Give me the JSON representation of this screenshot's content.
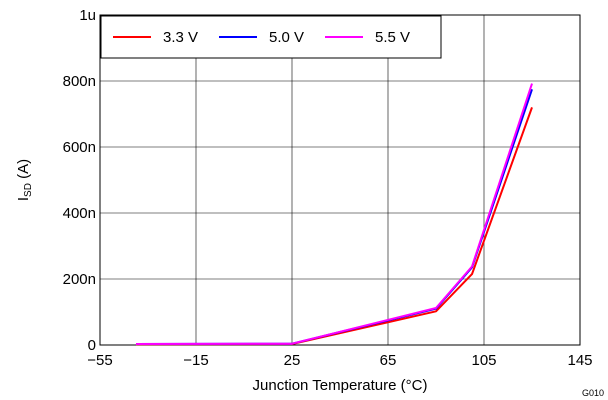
{
  "chart_data": {
    "type": "line",
    "xlabel": "Junction Temperature (°C)",
    "ylabel_main": "I",
    "ylabel_sub": "SD",
    "ylabel_unit": " (A)",
    "figure_code": "G010",
    "xlim": [
      -55,
      145
    ],
    "ylim": [
      0,
      1e-06
    ],
    "x_ticks": [
      {
        "value": -55,
        "label": "−55"
      },
      {
        "value": -15,
        "label": "−15"
      },
      {
        "value": 25,
        "label": "25"
      },
      {
        "value": 65,
        "label": "65"
      },
      {
        "value": 105,
        "label": "105"
      },
      {
        "value": 145,
        "label": "145"
      }
    ],
    "y_ticks": [
      {
        "value": 0,
        "label": "0"
      },
      {
        "value": 2e-07,
        "label": "200n"
      },
      {
        "value": 4e-07,
        "label": "400n"
      },
      {
        "value": 6e-07,
        "label": "600n"
      },
      {
        "value": 8e-07,
        "label": "800n"
      },
      {
        "value": 1e-06,
        "label": "1u"
      }
    ],
    "grid": true,
    "legend_position": "top-left",
    "series": [
      {
        "name": "3.3 V",
        "color": "#ff0000",
        "x": [
          -40,
          25,
          85,
          100,
          125
        ],
        "y": [
          2e-09,
          3e-09,
          1.02e-07,
          2.15e-07,
          7.2e-07
        ]
      },
      {
        "name": "5.0 V",
        "color": "#0000ff",
        "x": [
          -40,
          25,
          85,
          100,
          125
        ],
        "y": [
          3e-09,
          4e-09,
          1.1e-07,
          2.35e-07,
          7.75e-07
        ]
      },
      {
        "name": "5.5 V",
        "color": "#ff00ff",
        "x": [
          -40,
          25,
          85,
          100,
          125
        ],
        "y": [
          3e-09,
          4e-09,
          1.12e-07,
          2.38e-07,
          7.92e-07
        ]
      }
    ]
  }
}
